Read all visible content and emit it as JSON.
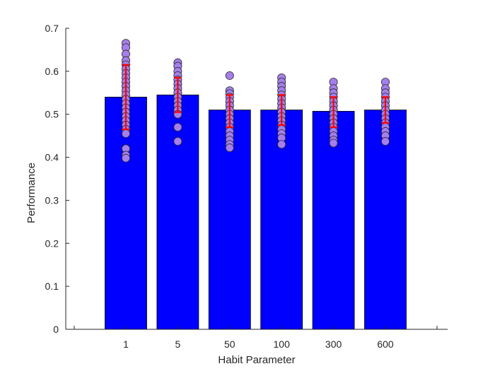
{
  "chart_data": {
    "type": "bar",
    "title": "",
    "xlabel": "Habit Parameter",
    "ylabel": "Performance",
    "categories": [
      "1",
      "5",
      "50",
      "100",
      "300",
      "600"
    ],
    "values": [
      0.54,
      0.545,
      0.51,
      0.51,
      0.507,
      0.51
    ],
    "ylim": [
      0,
      0.7
    ],
    "yticks": [
      "0",
      "0.1",
      "0.2",
      "0.3",
      "0.4",
      "0.5",
      "0.6",
      "0.7"
    ],
    "grid": false,
    "error_bars": [
      {
        "low": 0.465,
        "high": 0.615
      },
      {
        "low": 0.505,
        "high": 0.585
      },
      {
        "low": 0.47,
        "high": 0.545
      },
      {
        "low": 0.475,
        "high": 0.545
      },
      {
        "low": 0.47,
        "high": 0.54
      },
      {
        "low": 0.48,
        "high": 0.54
      }
    ],
    "points": [
      [
        0.665,
        0.655,
        0.64,
        0.625,
        0.615,
        0.605,
        0.595,
        0.585,
        0.575,
        0.565,
        0.555,
        0.545,
        0.535,
        0.525,
        0.515,
        0.505,
        0.495,
        0.485,
        0.475,
        0.465,
        0.455,
        0.42,
        0.405,
        0.398
      ],
      [
        0.62,
        0.612,
        0.6,
        0.59,
        0.58,
        0.57,
        0.56,
        0.55,
        0.54,
        0.53,
        0.52,
        0.51,
        0.5,
        0.47,
        0.437
      ],
      [
        0.59,
        0.555,
        0.548,
        0.54,
        0.53,
        0.52,
        0.51,
        0.5,
        0.49,
        0.48,
        0.47,
        0.46,
        0.45,
        0.44,
        0.43,
        0.422
      ],
      [
        0.585,
        0.575,
        0.565,
        0.555,
        0.545,
        0.535,
        0.525,
        0.515,
        0.505,
        0.495,
        0.485,
        0.475,
        0.465,
        0.455,
        0.445,
        0.43
      ],
      [
        0.575,
        0.56,
        0.55,
        0.54,
        0.53,
        0.52,
        0.51,
        0.5,
        0.49,
        0.48,
        0.47,
        0.46,
        0.45,
        0.44,
        0.433
      ],
      [
        0.575,
        0.56,
        0.55,
        0.54,
        0.53,
        0.52,
        0.51,
        0.5,
        0.49,
        0.48,
        0.47,
        0.46,
        0.45,
        0.437
      ]
    ],
    "colors": {
      "bar": "#0000ff",
      "bar_edge": "#000000",
      "point_fill": "#a57fec",
      "point_edge": "#2a2a2a",
      "error_bar": "#ff0000",
      "axis": "#262626"
    }
  }
}
